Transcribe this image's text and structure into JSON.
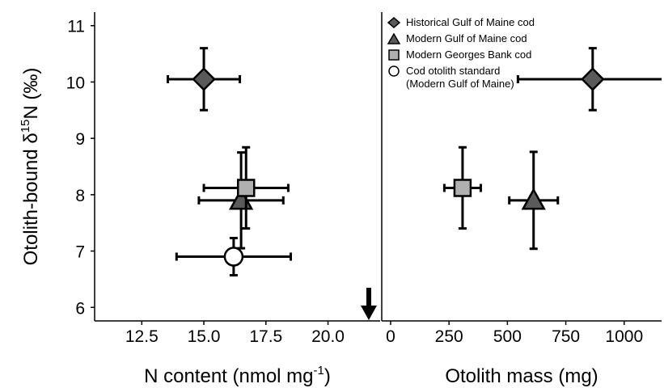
{
  "chart_data": [
    {
      "type": "scatter",
      "xlabel": [
        "N content (nmol mg",
        "-1",
        ")"
      ],
      "ylabel": [
        "Otolith-bound δ",
        "15",
        "N (‰)"
      ],
      "xlim": [
        10.6,
        22.1
      ],
      "xticks": [
        12.5,
        {
          "value": 15,
          "label": "15.0"
        },
        17.5,
        {
          "value": 20,
          "label": "20.0"
        }
      ],
      "ylim": [
        5.76,
        11.24
      ],
      "yticks": [
        6,
        7,
        8,
        9,
        10,
        11
      ],
      "legend": "upper right",
      "series": [
        {
          "name": "Historical Gulf of Maine cod",
          "marker": "diamond",
          "color": "#5a5a5a",
          "x": [
            15.0
          ],
          "values": [
            10.05
          ],
          "xerr": [
            1.45
          ],
          "yerr": [
            0.55
          ]
        },
        {
          "name": "Modern Gulf of Maine cod",
          "marker": "triangle",
          "color": "#5a5a5a",
          "x": [
            16.5
          ],
          "values": [
            7.9
          ],
          "xerr": [
            1.7
          ],
          "yerr": [
            0.85
          ]
        },
        {
          "name": "Modern Georges Bank cod",
          "marker": "square",
          "color": "#b0b0b0",
          "x": [
            16.7
          ],
          "values": [
            8.12
          ],
          "xerr": [
            1.7
          ],
          "yerr": [
            0.72
          ]
        },
        {
          "name": "Cod otolith standard\n(Modern Gulf of Maine)",
          "marker": "circle",
          "color": "#ffffff",
          "x": [
            16.2
          ],
          "values": [
            6.9
          ],
          "xerr": [
            2.3
          ],
          "yerr": [
            0.33
          ]
        }
      ]
    },
    {
      "type": "scatter",
      "xlabel": [
        "Otolith mass (mg)"
      ],
      "xlim": [
        -38,
        1160
      ],
      "xticks": [
        0,
        250,
        500,
        750,
        1000
      ],
      "ylim": [
        5.76,
        11.24
      ],
      "yticks": [
        6,
        7,
        8,
        9,
        10,
        11
      ],
      "series": [
        {
          "marker": "diamond",
          "color": "#5a5a5a",
          "x": [
            865
          ],
          "values": [
            10.05
          ],
          "xerr": [
            320
          ],
          "yerr": [
            0.55
          ]
        },
        {
          "marker": "triangle",
          "color": "#5a5a5a",
          "x": [
            612
          ],
          "values": [
            7.9
          ],
          "xerr": [
            104
          ],
          "yerr": [
            0.86
          ]
        },
        {
          "marker": "square",
          "color": "#b0b0b0",
          "x": [
            308
          ],
          "values": [
            8.12
          ],
          "xerr": [
            78
          ],
          "yerr": [
            0.72
          ]
        }
      ]
    }
  ]
}
